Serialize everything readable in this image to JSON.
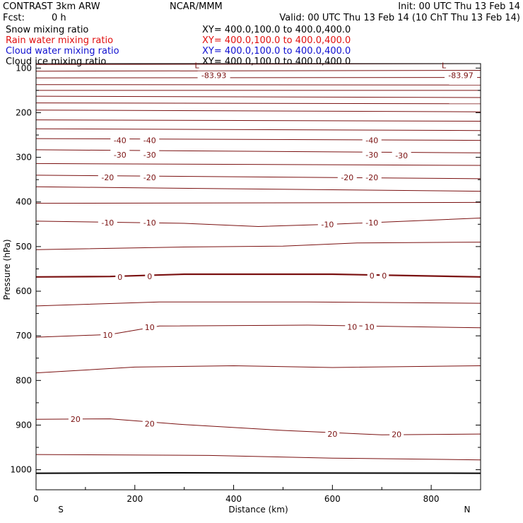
{
  "header": {
    "model": "CONTRAST  3km ARW",
    "center": "NCAR/MMM",
    "init": "Init: 00 UTC Thu 13 Feb 14",
    "fcst_label": "Fcst:",
    "fcst_value": "0 h",
    "valid": "Valid: 00 UTC Thu 13 Feb 14 (10 ChT Thu 13 Feb 14)"
  },
  "fields": [
    {
      "name": "Snow mixing ratio",
      "xy": "XY= 400.0,100.0 to 400.0,400.0",
      "color": "#000000"
    },
    {
      "name": "Rain water mixing ratio",
      "xy": "XY= 400.0,100.0 to 400.0,400.0",
      "color": "#e01010"
    },
    {
      "name": "Cloud water mixing ratio",
      "xy": "XY= 400.0,100.0 to 400.0,400.0",
      "color": "#1010d0"
    },
    {
      "name": "Cloud ice mixing ratio",
      "xy": "XY= 400.0,100.0 to 400.0,400.0",
      "color": "#000000"
    }
  ],
  "chart_data": {
    "type": "line",
    "xlabel": "Distance (km)",
    "ylabel": "Pressure (hPa)",
    "xlim": [
      0,
      900
    ],
    "ylim": [
      1045,
      90
    ],
    "x_ticks": [
      0,
      200,
      400,
      600,
      800
    ],
    "y_ticks": [
      100,
      200,
      300,
      400,
      500,
      600,
      700,
      800,
      900,
      1000
    ],
    "end_labels": {
      "left": "S",
      "right": "N"
    },
    "line_color": "#7a1010",
    "lows": [
      {
        "symbol": "L",
        "value": "-83.93",
        "x": 360,
        "p": 99
      },
      {
        "symbol": "L",
        "value": "-83.97",
        "x": 860,
        "p": 99
      }
    ],
    "terrain": [
      [
        0,
        1008
      ],
      [
        260,
        1007
      ],
      [
        900,
        1008
      ]
    ],
    "contours": [
      {
        "p": [
          [
            0,
            92
          ],
          [
            900,
            90
          ]
        ]
      },
      {
        "p": [
          [
            0,
            107
          ],
          [
            900,
            105
          ]
        ]
      },
      {
        "p": [
          [
            0,
            122
          ],
          [
            900,
            121
          ]
        ]
      },
      {
        "p": [
          [
            0,
            137
          ],
          [
            900,
            138
          ]
        ]
      },
      {
        "p": [
          [
            0,
            150
          ],
          [
            900,
            150
          ]
        ]
      },
      {
        "p": [
          [
            0,
            163
          ],
          [
            900,
            166
          ]
        ]
      },
      {
        "p": [
          [
            0,
            178
          ],
          [
            900,
            180
          ]
        ]
      },
      {
        "p": [
          [
            0,
            194
          ],
          [
            900,
            198
          ]
        ]
      },
      {
        "p": [
          [
            0,
            216
          ],
          [
            900,
            219
          ]
        ]
      },
      {
        "p": [
          [
            0,
            236
          ],
          [
            900,
            240
          ]
        ]
      },
      {
        "p": [
          [
            0,
            258
          ],
          [
            900,
            262
          ]
        ]
      },
      {
        "p": [
          [
            0,
            283
          ],
          [
            900,
            290
          ]
        ]
      },
      {
        "p": [
          [
            0,
            314
          ],
          [
            900,
            318
          ]
        ]
      },
      {
        "p": [
          [
            0,
            340
          ],
          [
            900,
            348
          ]
        ]
      },
      {
        "p": [
          [
            0,
            366
          ],
          [
            900,
            376
          ]
        ]
      },
      {
        "p": [
          [
            0,
            403
          ],
          [
            900,
            401
          ]
        ]
      },
      {
        "p": [
          [
            0,
            443
          ],
          [
            300,
            448
          ],
          [
            450,
            455
          ],
          [
            600,
            450
          ],
          [
            900,
            436
          ]
        ]
      },
      {
        "p": [
          [
            0,
            507
          ],
          [
            300,
            501
          ],
          [
            500,
            499
          ],
          [
            650,
            492
          ],
          [
            900,
            490
          ]
        ]
      },
      {
        "p": [
          [
            0,
            568
          ],
          [
            150,
            567
          ],
          [
            300,
            562
          ],
          [
            600,
            562
          ],
          [
            750,
            565
          ],
          [
            900,
            568
          ]
        ],
        "heavy": true
      },
      {
        "p": [
          [
            0,
            633
          ],
          [
            250,
            624
          ],
          [
            550,
            624
          ],
          [
            900,
            627
          ]
        ]
      },
      {
        "p": [
          [
            0,
            703
          ],
          [
            150,
            697
          ],
          [
            250,
            678
          ],
          [
            550,
            676
          ],
          [
            900,
            682
          ]
        ]
      },
      {
        "p": [
          [
            0,
            783
          ],
          [
            200,
            770
          ],
          [
            400,
            767
          ],
          [
            600,
            771
          ],
          [
            900,
            767
          ]
        ]
      },
      {
        "p": [
          [
            0,
            887
          ],
          [
            150,
            886
          ],
          [
            300,
            899
          ],
          [
            500,
            912
          ],
          [
            700,
            922
          ],
          [
            900,
            920
          ]
        ]
      },
      {
        "p": [
          [
            0,
            966
          ],
          [
            350,
            968
          ],
          [
            600,
            974
          ],
          [
            900,
            978
          ]
        ]
      }
    ],
    "labels": [
      {
        "text": "-40",
        "x": 170,
        "p": 262
      },
      {
        "text": "-40",
        "x": 230,
        "p": 262
      },
      {
        "text": "-40",
        "x": 680,
        "p": 262
      },
      {
        "text": "-30",
        "x": 170,
        "p": 294
      },
      {
        "text": "-30",
        "x": 230,
        "p": 294
      },
      {
        "text": "-30",
        "x": 680,
        "p": 294
      },
      {
        "text": "-30",
        "x": 740,
        "p": 296
      },
      {
        "text": "-20",
        "x": 145,
        "p": 345
      },
      {
        "text": "-20",
        "x": 230,
        "p": 345
      },
      {
        "text": "-20",
        "x": 630,
        "p": 345
      },
      {
        "text": "-20",
        "x": 680,
        "p": 345
      },
      {
        "text": "-10",
        "x": 145,
        "p": 446
      },
      {
        "text": "-10",
        "x": 230,
        "p": 446
      },
      {
        "text": "-10",
        "x": 590,
        "p": 450
      },
      {
        "text": "-10",
        "x": 680,
        "p": 446
      },
      {
        "text": "0",
        "x": 170,
        "p": 568
      },
      {
        "text": "0",
        "x": 230,
        "p": 567
      },
      {
        "text": "0",
        "x": 680,
        "p": 565
      },
      {
        "text": "0",
        "x": 705,
        "p": 565
      },
      {
        "text": "10",
        "x": 145,
        "p": 698
      },
      {
        "text": "10",
        "x": 230,
        "p": 681
      },
      {
        "text": "10",
        "x": 640,
        "p": 680
      },
      {
        "text": "10",
        "x": 675,
        "p": 680
      },
      {
        "text": "20",
        "x": 80,
        "p": 887
      },
      {
        "text": "20",
        "x": 230,
        "p": 897
      },
      {
        "text": "20",
        "x": 600,
        "p": 920
      },
      {
        "text": "20",
        "x": 730,
        "p": 921
      }
    ]
  }
}
